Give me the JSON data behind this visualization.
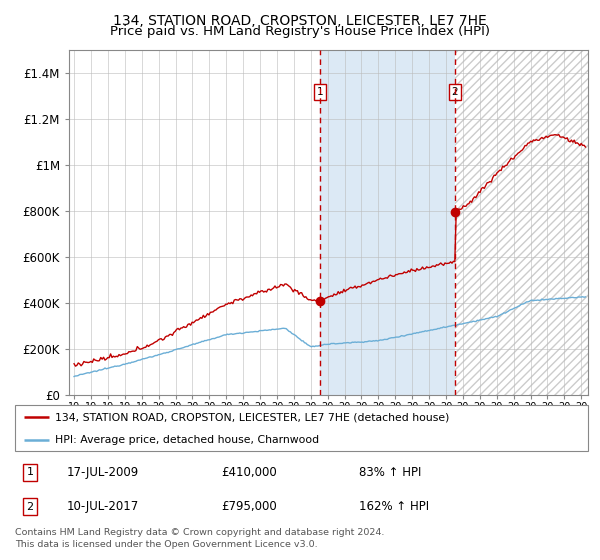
{
  "title1": "134, STATION ROAD, CROPSTON, LEICESTER, LE7 7HE",
  "title2": "Price paid vs. HM Land Registry's House Price Index (HPI)",
  "ylim": [
    0,
    1500000
  ],
  "xlim_start": 1994.7,
  "xlim_end": 2025.4,
  "yticks": [
    0,
    200000,
    400000,
    600000,
    800000,
    1000000,
    1200000,
    1400000
  ],
  "ytick_labels": [
    "£0",
    "£200K",
    "£400K",
    "£600K",
    "£800K",
    "£1M",
    "£1.2M",
    "£1.4M"
  ],
  "purchase1_x": 2009.54,
  "purchase1_y": 410000,
  "purchase2_x": 2017.53,
  "purchase2_y": 795000,
  "legend_line1": "134, STATION ROAD, CROPSTON, LEICESTER, LE7 7HE (detached house)",
  "legend_line2": "HPI: Average price, detached house, Charnwood",
  "note1_label": "1",
  "note1_date": "17-JUL-2009",
  "note1_price": "£410,000",
  "note1_pct": "83% ↑ HPI",
  "note2_label": "2",
  "note2_date": "10-JUL-2017",
  "note2_price": "£795,000",
  "note2_pct": "162% ↑ HPI",
  "footer": "Contains HM Land Registry data © Crown copyright and database right 2024.\nThis data is licensed under the Open Government Licence v3.0.",
  "hpi_color": "#6baed6",
  "price_color": "#c00000",
  "bg_between_color": "#dce9f5",
  "grid_color": "#bbbbbb",
  "title_fontsize": 10,
  "subtitle_fontsize": 9.5
}
